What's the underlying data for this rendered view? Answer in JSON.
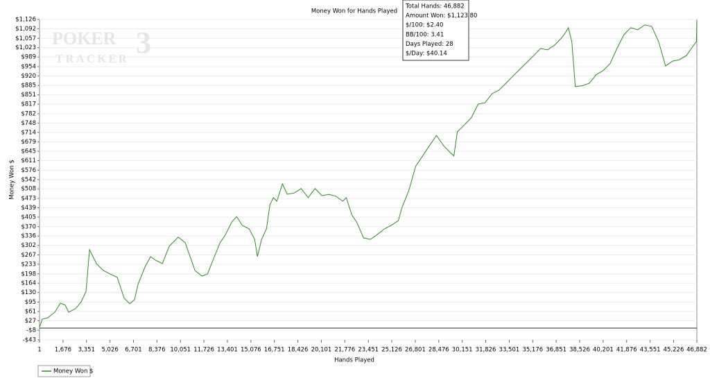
{
  "chart_data": {
    "type": "line",
    "title": "Money Won for Hands Played",
    "x_label": "Hands Played",
    "y_label": "Money Won $",
    "watermark": [
      "POKER",
      "TRACKER",
      "3"
    ],
    "tooltip": [
      "Total Hands: 46,882",
      "Amount Won: $1,123.80",
      "$/100: $2.40",
      "BB/100: 3.41",
      "Days Played: 28",
      "$/Day: $40.14"
    ],
    "xlim": [
      1,
      46882
    ],
    "ylim": [
      -43,
      1126
    ],
    "xticks": [
      1,
      {
        "value": 1676,
        "label": "1,676"
      },
      {
        "value": 3351,
        "label": "3,351"
      },
      {
        "value": 5026,
        "label": "5,026"
      },
      {
        "value": 6701,
        "label": "6,701"
      },
      {
        "value": 8376,
        "label": "8,376"
      },
      {
        "value": 10051,
        "label": "10,051"
      },
      {
        "value": 11726,
        "label": "11,726"
      },
      {
        "value": 13401,
        "label": "13,401"
      },
      {
        "value": 15076,
        "label": "15,076"
      },
      {
        "value": 16751,
        "label": "16,751"
      },
      {
        "value": 18426,
        "label": "18,426"
      },
      {
        "value": 20101,
        "label": "20,101"
      },
      {
        "value": 21776,
        "label": "21,776"
      },
      {
        "value": 23451,
        "label": "23,451"
      },
      {
        "value": 25126,
        "label": "25,126"
      },
      {
        "value": 26801,
        "label": "26,801"
      },
      {
        "value": 28476,
        "label": "28,476"
      },
      {
        "value": 30151,
        "label": "30,151"
      },
      {
        "value": 31826,
        "label": "31,826"
      },
      {
        "value": 33501,
        "label": "33,501"
      },
      {
        "value": 35176,
        "label": "35,176"
      },
      {
        "value": 36851,
        "label": "36,851"
      },
      {
        "value": 38526,
        "label": "38,526"
      },
      {
        "value": 40201,
        "label": "40,201"
      },
      {
        "value": 41876,
        "label": "41,876"
      },
      {
        "value": 43551,
        "label": "43,551"
      },
      {
        "value": 45226,
        "label": "45,226"
      },
      {
        "value": 46882,
        "label": "46,882"
      }
    ],
    "yticks": [
      {
        "value": 1126,
        "label": "$1,126"
      },
      {
        "value": 1092,
        "label": "$1,092"
      },
      {
        "value": 1057,
        "label": "$1,057"
      },
      {
        "value": 1023,
        "label": "$1,023"
      },
      {
        "value": 989,
        "label": "$989"
      },
      {
        "value": 954,
        "label": "$954"
      },
      {
        "value": 920,
        "label": "$920"
      },
      {
        "value": 885,
        "label": "$885"
      },
      {
        "value": 851,
        "label": "$851"
      },
      {
        "value": 817,
        "label": "$817"
      },
      {
        "value": 782,
        "label": "$782"
      },
      {
        "value": 748,
        "label": "$748"
      },
      {
        "value": 714,
        "label": "$714"
      },
      {
        "value": 679,
        "label": "$679"
      },
      {
        "value": 645,
        "label": "$645"
      },
      {
        "value": 611,
        "label": "$611"
      },
      {
        "value": 576,
        "label": "$576"
      },
      {
        "value": 542,
        "label": "$542"
      },
      {
        "value": 508,
        "label": "$508"
      },
      {
        "value": 473,
        "label": "$473"
      },
      {
        "value": 439,
        "label": "$439"
      },
      {
        "value": 405,
        "label": "$405"
      },
      {
        "value": 370,
        "label": "$370"
      },
      {
        "value": 336,
        "label": "$336"
      },
      {
        "value": 302,
        "label": "$302"
      },
      {
        "value": 267,
        "label": "$267"
      },
      {
        "value": 233,
        "label": "$233"
      },
      {
        "value": 198,
        "label": "$198"
      },
      {
        "value": 164,
        "label": "$164"
      },
      {
        "value": 130,
        "label": "$130"
      },
      {
        "value": 95,
        "label": "$95"
      },
      {
        "value": 61,
        "label": "$61"
      },
      {
        "value": 27,
        "label": "$27"
      },
      {
        "value": -8,
        "label": "-$8"
      },
      {
        "value": -43,
        "label": "-$43"
      }
    ],
    "grid": true,
    "x": [
      1,
      199,
      595,
      1090,
      1486,
      1833,
      2080,
      2575,
      2971,
      3318,
      3565,
      4060,
      4555,
      5050,
      5545,
      6040,
      6436,
      6783,
      7030,
      7525,
      7921,
      8268,
      8763,
      9258,
      9901,
      10396,
      10743,
      11089,
      11584,
      11980,
      12376,
      12871,
      13218,
      13713,
      14059,
      14455,
      14950,
      15346,
      15544,
      15841,
      16187,
      16435,
      16682,
      16930,
      17326,
      17672,
      18167,
      18662,
      19157,
      19652,
      20147,
      20642,
      21137,
      21632,
      21880,
      22276,
      22622,
      23117,
      23612,
      24107,
      24602,
      25097,
      25592,
      25840,
      26335,
      26830,
      27325,
      27820,
      28315,
      28810,
      29305,
      29552,
      29800,
      30295,
      30790,
      31285,
      31780,
      32275,
      32770,
      33265,
      33760,
      34255,
      34750,
      35245,
      35740,
      36235,
      36730,
      37225,
      37472,
      37720,
      37967,
      38215,
      38710,
      39205,
      39700,
      40195,
      40690,
      41185,
      41680,
      42175,
      42670,
      43165,
      43660,
      44155,
      44650,
      45145,
      45640,
      46135,
      46630,
      46850,
      46882
    ],
    "series": [
      {
        "name": "Money Won $",
        "color": "#2e8b22",
        "values": [
          3,
          33,
          38,
          58,
          91,
          84,
          58,
          71,
          96,
          134,
          286,
          235,
          210,
          197,
          185,
          109,
          89,
          104,
          160,
          223,
          261,
          248,
          235,
          299,
          332,
          311,
          261,
          210,
          190,
          197,
          248,
          311,
          337,
          387,
          407,
          375,
          362,
          324,
          261,
          324,
          362,
          450,
          476,
          463,
          526,
          488,
          493,
          509,
          476,
          509,
          483,
          488,
          481,
          463,
          476,
          413,
          387,
          329,
          324,
          342,
          362,
          375,
          392,
          438,
          501,
          590,
          628,
          666,
          703,
          666,
          640,
          628,
          716,
          741,
          767,
          817,
          822,
          855,
          868,
          893,
          919,
          944,
          969,
          994,
          1020,
          1015,
          1032,
          1058,
          1075,
          1096,
          1045,
          881,
          884,
          893,
          924,
          939,
          964,
          1020,
          1070,
          1096,
          1088,
          1106,
          1101,
          1045,
          956,
          974,
          979,
          994,
          1030,
          1045,
          1124
        ]
      }
    ],
    "legend": "bottom-left"
  }
}
